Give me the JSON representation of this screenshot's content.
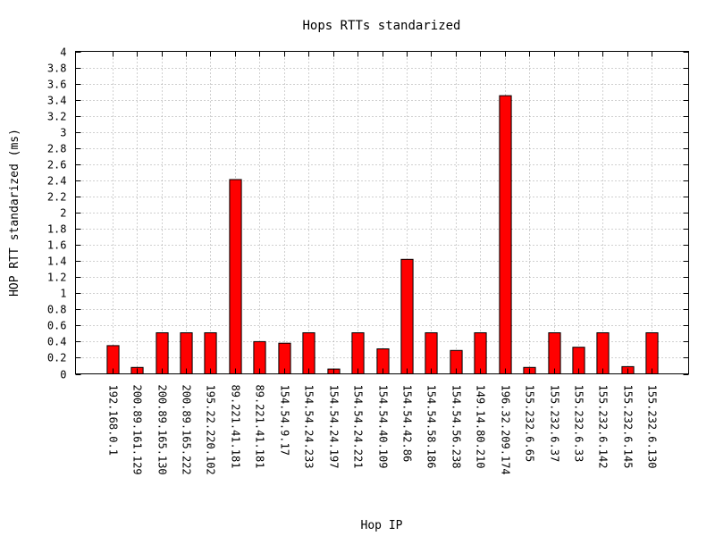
{
  "chart_data": {
    "type": "bar",
    "title": "Hops RTTs standarized",
    "xlabel": "Hop IP",
    "ylabel": "HOP RTT standarized (ms)",
    "ylim": [
      0,
      4
    ],
    "yticks": [
      0,
      0.2,
      0.4,
      0.6,
      0.8,
      1,
      1.2,
      1.4,
      1.6,
      1.8,
      2,
      2.2,
      2.4,
      2.6,
      2.8,
      3,
      3.2,
      3.4,
      3.6,
      3.8,
      4
    ],
    "ytick_labels": [
      "0",
      "0.2",
      "0.4",
      "0.6",
      "0.8",
      "1",
      "1.2",
      "1.4",
      "1.6",
      "1.8",
      "2",
      "2.2",
      "2.4",
      "2.6",
      "2.8",
      "3",
      "3.2",
      "3.4",
      "3.6",
      "3.8",
      "4"
    ],
    "grid": true,
    "bar_color": "#ff0000",
    "categories": [
      "192.168.0.1",
      "200.89.161.129",
      "200.89.165.130",
      "200.89.165.222",
      "195.22.220.102",
      "89.221.41.181",
      "89.221.41.181",
      "154.54.9.17",
      "154.54.24.233",
      "154.54.24.197",
      "154.54.24.221",
      "154.54.40.109",
      "154.54.42.86",
      "154.54.58.186",
      "154.54.56.238",
      "149.14.80.210",
      "196.32.209.174",
      "155.232.6.65",
      "155.232.6.37",
      "155.232.6.33",
      "155.232.6.142",
      "155.232.6.145",
      "155.232.6.130"
    ],
    "values": [
      0.35,
      0.08,
      0.51,
      0.51,
      0.51,
      2.41,
      0.4,
      0.38,
      0.51,
      0.06,
      0.51,
      0.31,
      1.42,
      0.51,
      0.29,
      0.51,
      3.45,
      0.08,
      0.51,
      0.33,
      0.51,
      0.09,
      0.51
    ]
  }
}
